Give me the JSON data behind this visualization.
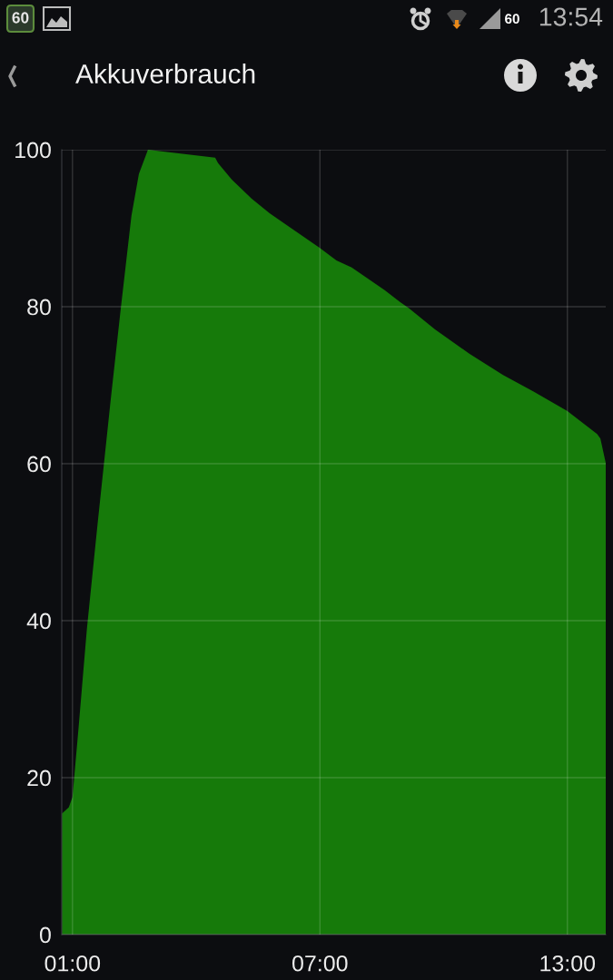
{
  "chart_data": {
    "type": "area",
    "title": "Akkuverbrauch",
    "annotations": [
      "60",
      "60",
      "13:54"
    ],
    "x": [
      0.74,
      0.91,
      1.0,
      1.15,
      1.35,
      1.61,
      1.93,
      2.17,
      2.43,
      2.61,
      2.83,
      4.46,
      4.53,
      4.86,
      5.34,
      5.78,
      6.36,
      6.99,
      7.4,
      7.77,
      8.57,
      8.94,
      9.16,
      9.79,
      10.63,
      11.44,
      12.18,
      13.0,
      13.72,
      13.8,
      13.93
    ],
    "series": [
      {
        "color": "#167a0a",
        "values": [
          15.4,
          16.2,
          17.5,
          26.5,
          39.0,
          52.4,
          68.3,
          79.7,
          91.6,
          96.9,
          100,
          99.0,
          98.3,
          96.2,
          93.8,
          91.9,
          89.8,
          87.5,
          85.9,
          85.0,
          82.1,
          80.6,
          79.8,
          77.1,
          74.0,
          71.3,
          69.2,
          66.7,
          63.8,
          63.2,
          60.1
        ]
      }
    ],
    "xlim": [
      0.74,
      13.93
    ],
    "xticks": [
      {
        "value": 1,
        "label": "01:00"
      },
      {
        "value": 7,
        "label": "07:00"
      },
      {
        "value": 13,
        "label": "13:00"
      }
    ],
    "ylim": [
      0,
      100
    ],
    "yticks": [
      0,
      20,
      40,
      60,
      80,
      100
    ],
    "grid": true
  }
}
